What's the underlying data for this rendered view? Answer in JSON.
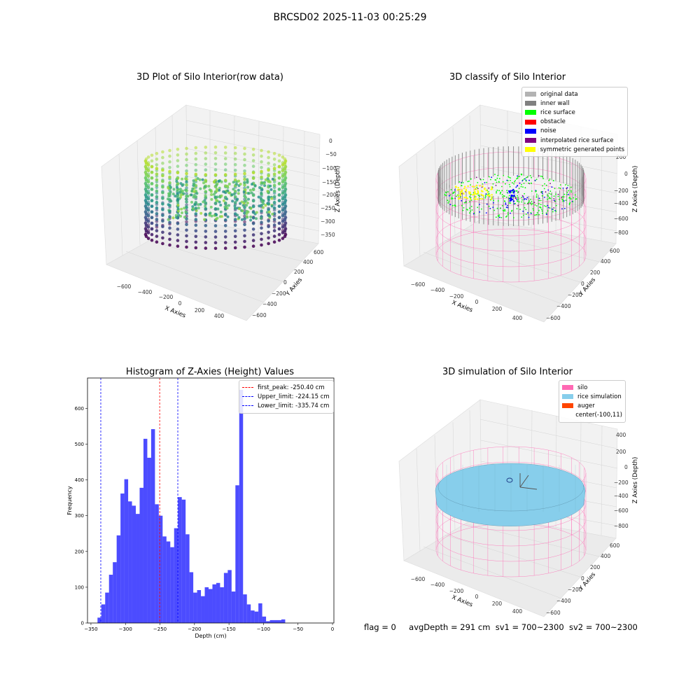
{
  "figure": {
    "title": "BRCSD02 2025-11-03 00:25:29",
    "status": {
      "flag": "flag = 0",
      "avg_depth": "avgDepth = 291 cm",
      "sv1": "sv1 = 700~2300",
      "sv2": "sv2 = 700~2300"
    }
  },
  "panels": {
    "raw": {
      "title": "3D Plot of Silo Interior(row data)",
      "xlabel": "X Axies",
      "ylabel": "Y Axies",
      "zlabel": "Z Axies (Depth)",
      "xticks": [
        "−600",
        "−400",
        "−200",
        "0",
        "200",
        "400"
      ],
      "yticks": [
        "−600",
        "−400",
        "−200",
        "0",
        "200",
        "400",
        "600"
      ],
      "zticks": [
        "0",
        "−50",
        "−100",
        "−150",
        "−200",
        "−250",
        "−300",
        "−350"
      ]
    },
    "classify": {
      "title": "3D classify of Silo Interior",
      "xlabel": "X Axies",
      "ylabel": "Y Axies",
      "zlabel": "Z Axies (Depth)",
      "xticks": [
        "−600",
        "−400",
        "−200",
        "0",
        "200",
        "400"
      ],
      "yticks": [
        "−600",
        "−400",
        "−200",
        "0",
        "200",
        "400",
        "600"
      ],
      "zticks": [
        "200",
        "0",
        "−200",
        "−400",
        "−600",
        "−800"
      ],
      "legend": [
        {
          "label": "original data",
          "color": "#b3b3b3"
        },
        {
          "label": "inner wall",
          "color": "#808080"
        },
        {
          "label": "rice surface",
          "color": "#00ff00"
        },
        {
          "label": "obstacle",
          "color": "#ff0000"
        },
        {
          "label": "noise",
          "color": "#0000ff"
        },
        {
          "label": "interpolated rice surface",
          "color": "#800080"
        },
        {
          "label": "symmetric generated points",
          "color": "#ffff00"
        }
      ]
    },
    "simulation": {
      "title": "3D simulation of Silo Interior",
      "xlabel": "X Axies",
      "ylabel": "Y Axies",
      "zlabel": "Z Axies (Depth)",
      "xticks": [
        "−600",
        "−400",
        "−200",
        "0",
        "200",
        "400"
      ],
      "yticks": [
        "−600",
        "−400",
        "−200",
        "0",
        "200",
        "400",
        "600"
      ],
      "zticks": [
        "400",
        "200",
        "0",
        "−200",
        "−400",
        "−600",
        "−800"
      ],
      "legend": [
        {
          "label": "silo",
          "color": "#ff69b4"
        },
        {
          "label": "rice simulation",
          "color": "#87ceeb"
        },
        {
          "label": "auger",
          "color": "#ff4500"
        },
        {
          "label": "center(-100,11)",
          "color": ""
        }
      ]
    }
  },
  "chart_data": {
    "type": "bar",
    "title": "Histogram of Z-Axies (Height) Values",
    "xlabel": "Depth (cm)",
    "ylabel": "Frequency",
    "xlim": [
      -355,
      2
    ],
    "ylim": [
      0,
      685
    ],
    "xticks": [
      -350,
      -300,
      -250,
      -200,
      -150,
      -100,
      -50,
      0
    ],
    "xtick_labels": [
      "−350",
      "−300",
      "−250",
      "−200",
      "−150",
      "−100",
      "−50",
      "0"
    ],
    "yticks": [
      0,
      100,
      200,
      300,
      400,
      500,
      600
    ],
    "bin_start": -340.5,
    "bin_width": 5.55,
    "values": [
      15,
      52,
      85,
      135,
      170,
      245,
      362,
      402,
      340,
      328,
      305,
      378,
      515,
      462,
      542,
      332,
      300,
      242,
      228,
      212,
      265,
      352,
      345,
      248,
      142,
      85,
      92,
      75,
      100,
      95,
      108,
      112,
      100,
      140,
      148,
      88,
      385,
      652,
      80,
      52,
      35,
      32,
      55,
      18,
      5,
      8,
      8,
      8,
      10
    ],
    "bar_color": "#0000ff",
    "vlines": [
      {
        "label": "first_peak: -250.40 cm",
        "x": -250.4,
        "color": "#ff0000"
      },
      {
        "label": "Upper_limit: -224.15 cm",
        "x": -224.15,
        "color": "#0000ff"
      },
      {
        "label": "Lower_limit: -335.74 cm",
        "x": -335.74,
        "color": "#0000ff"
      }
    ],
    "legend_position": "upper right"
  }
}
